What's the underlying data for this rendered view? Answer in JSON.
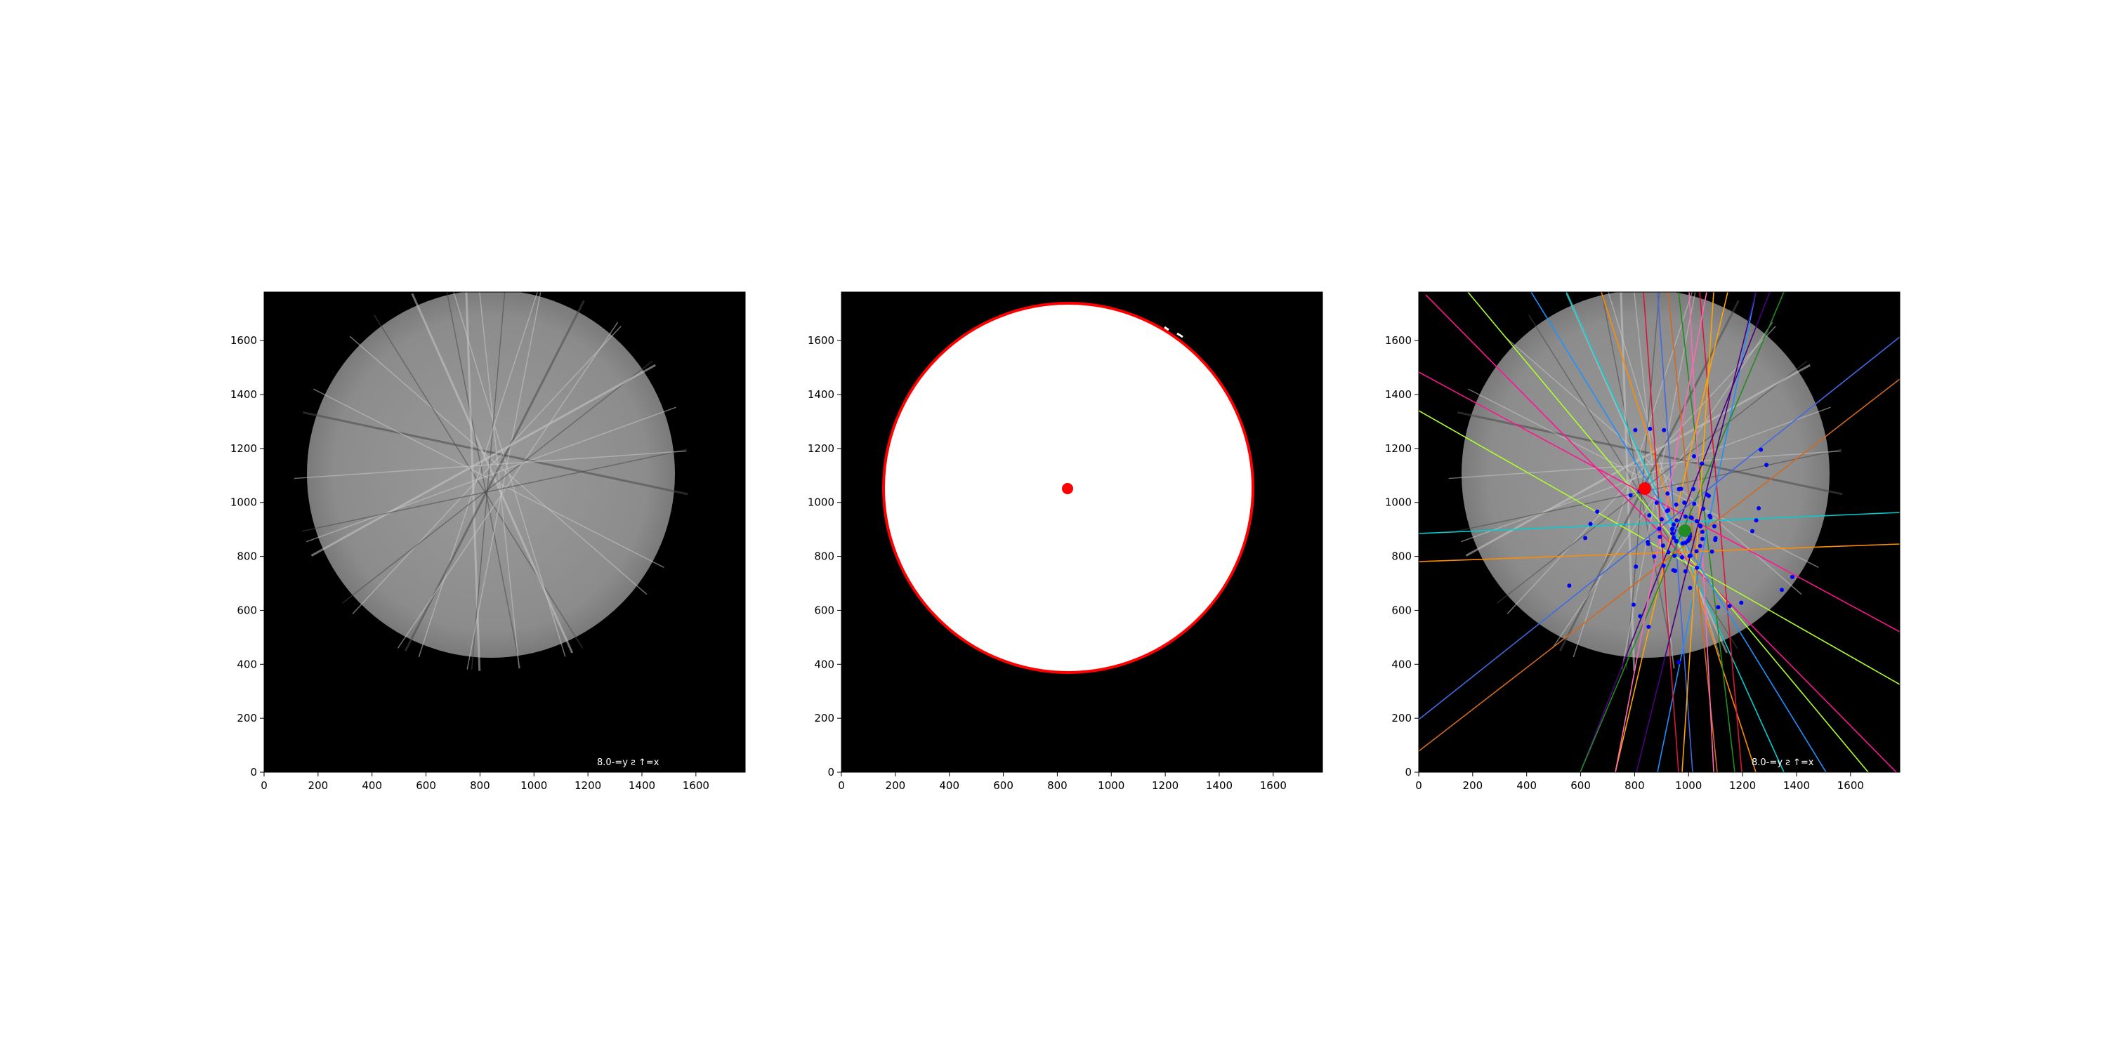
{
  "panels": [
    {
      "kind": "grayscale-image",
      "corner_text": "8.0-=y ƨ ↑=x",
      "xticks": [
        "0",
        "200",
        "400",
        "600",
        "800",
        "1000",
        "1200",
        "1400",
        "1600"
      ],
      "yticks": [
        "0",
        "200",
        "400",
        "600",
        "800",
        "1000",
        "1200",
        "1400",
        "1600"
      ]
    },
    {
      "kind": "binary-mask",
      "markers": [
        {
          "name": "center-marker",
          "color": "#ff0000",
          "x": 845,
          "y": 1055
        }
      ],
      "xticks": [
        "0",
        "200",
        "400",
        "600",
        "800",
        "1000",
        "1200",
        "1400",
        "1600"
      ],
      "yticks": [
        "0",
        "200",
        "400",
        "600",
        "800",
        "1000",
        "1200",
        "1400",
        "1600"
      ]
    },
    {
      "kind": "line-overlay",
      "corner_text": "8.0-=y ƨ ↑=x",
      "markers": [
        {
          "name": "red-center-marker",
          "color": "#ff0000",
          "x": 845,
          "y": 1055
        },
        {
          "name": "green-center-marker",
          "color": "#228b22",
          "x": 990,
          "y": 895
        }
      ],
      "xticks": [
        "0",
        "200",
        "400",
        "600",
        "800",
        "1000",
        "1200",
        "1400",
        "1600"
      ],
      "yticks": [
        "0",
        "200",
        "400",
        "600",
        "800",
        "1000",
        "1200",
        "1400",
        "1600"
      ]
    }
  ],
  "colors": {
    "circle_outline": "#ff0000",
    "intersection_points": "#0000ff",
    "line_palette": [
      "#ff1493",
      "#adff2f",
      "#00ced1",
      "#ff8c00",
      "#4169e1",
      "#d2691e",
      "#228b22",
      "#ff69b4",
      "#dc143c",
      "#ffa500",
      "#1e90ff",
      "#4b0082"
    ]
  }
}
